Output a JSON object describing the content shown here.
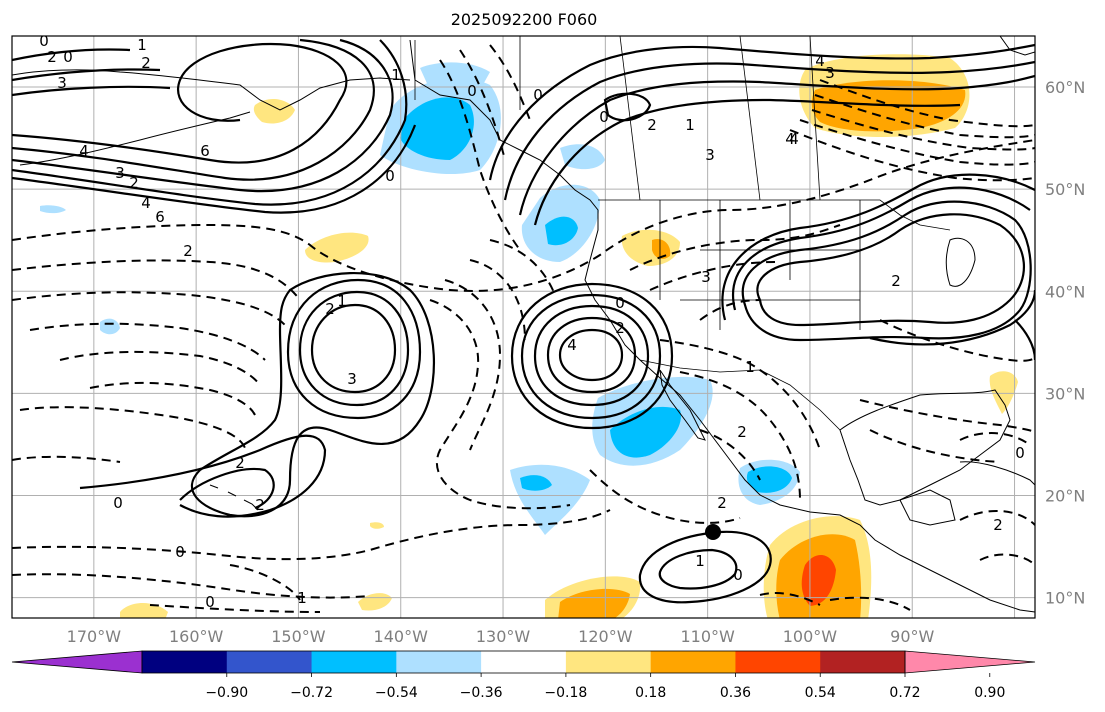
{
  "title": "2025092200 F060",
  "map": {
    "lon_range_deg": [
      -178,
      -78
    ],
    "lat_range_deg": [
      8,
      65
    ],
    "lon_ticks": [
      "170°W",
      "160°W",
      "150°W",
      "140°W",
      "130°W",
      "120°W",
      "110°W",
      "100°W",
      "90°W"
    ],
    "lat_ticks": [
      "60°N",
      "50°N",
      "40°N",
      "30°N",
      "20°N",
      "10°N"
    ],
    "grid": true,
    "marker": {
      "label": "point",
      "color": "#000000"
    }
  },
  "colorbar": {
    "ticks": [
      "−0.90",
      "−0.72",
      "−0.54",
      "−0.36",
      "−0.18",
      "0.18",
      "0.36",
      "0.54",
      "0.72",
      "0.90"
    ],
    "colors": [
      "#9b30d0",
      "#000080",
      "#3355cc",
      "#00bfff",
      "#aee0ff",
      "#ffffff",
      "#ffe680",
      "#ffa500",
      "#ff4500",
      "#b22222",
      "#ff88aa"
    ]
  },
  "contour_labels": [
    "0",
    "2",
    "3",
    "6",
    "4",
    "3",
    "2",
    "4",
    "6",
    "2",
    "0",
    "1",
    "2",
    "4",
    "3",
    "4",
    "3",
    "1",
    "2",
    "0",
    "0",
    "1",
    "0",
    "0",
    "1",
    "2",
    "3",
    "0",
    "4",
    "2",
    "1",
    "2",
    "0",
    "0",
    "2",
    "1",
    "0",
    "1",
    "0",
    "2",
    "2",
    "0",
    "4",
    "2",
    "3",
    "2"
  ]
}
